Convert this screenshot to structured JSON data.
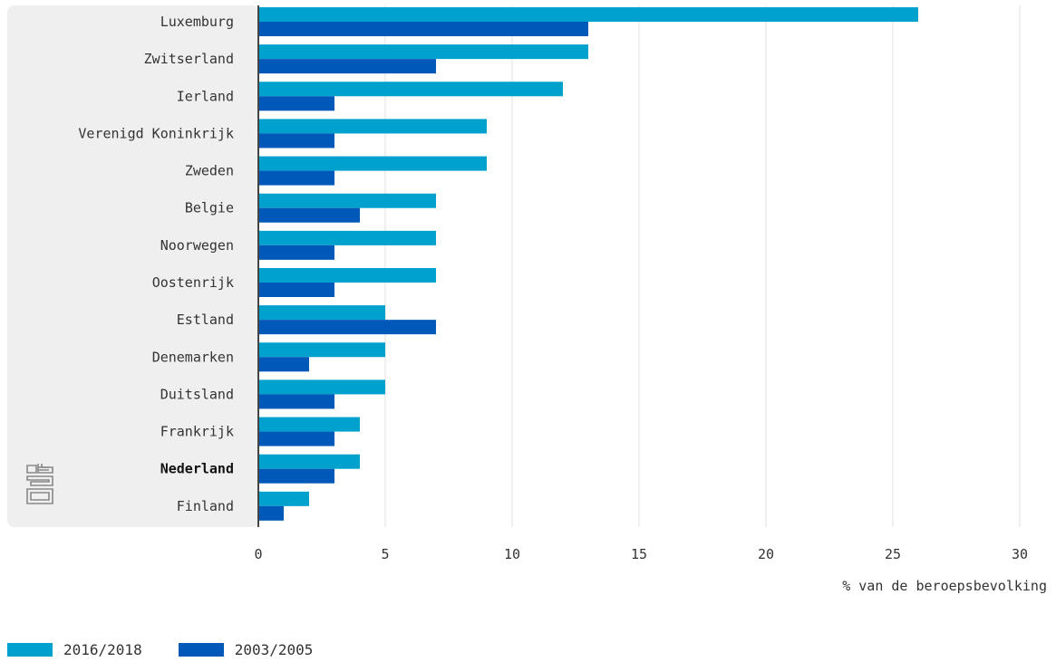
{
  "chart_data": {
    "type": "bar",
    "orientation": "horizontal",
    "categories": [
      "Luxemburg",
      "Zwitserland",
      "Ierland",
      "Verenigd Koninkrijk",
      "Zweden",
      "Belgie",
      "Noorwegen",
      "Oostenrijk",
      "Estland",
      "Denemarken",
      "Duitsland",
      "Frankrijk",
      "Nederland",
      "Finland"
    ],
    "highlighted_category": "Nederland",
    "series": [
      {
        "name": "2016/2018",
        "color": "#00a1cd",
        "values": [
          26,
          13,
          12,
          9,
          9,
          7,
          7,
          7,
          5,
          5,
          5,
          4,
          4,
          2
        ]
      },
      {
        "name": "2003/2005",
        "color": "#0058b8",
        "values": [
          13,
          7,
          3,
          3,
          3,
          4,
          3,
          3,
          7,
          2,
          3,
          3,
          3,
          1
        ]
      }
    ],
    "xlabel": "% van de beroepsbevolking",
    "xlim": [
      0,
      30
    ],
    "xticks": [
      0,
      5,
      10,
      15,
      20,
      25,
      30
    ],
    "grid": true,
    "legend_position": "bottom-left",
    "logo_icon": "cbs-logo-icon"
  },
  "legend": [
    {
      "label": "2016/2018",
      "color": "#00a1cd"
    },
    {
      "label": "2003/2005",
      "color": "#0058b8"
    }
  ]
}
